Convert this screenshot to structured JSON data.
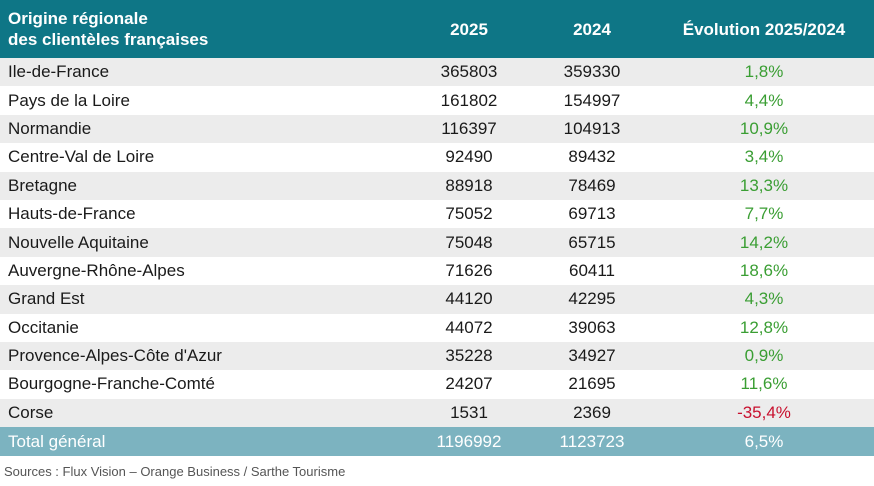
{
  "table": {
    "headers": {
      "region_line1": "Origine régionale",
      "region_line2": "des clientèles françaises",
      "y2025": "2025",
      "y2024": "2024",
      "evolution": "Évolution 2025/2024"
    },
    "rows": [
      {
        "region": "Ile-de-France",
        "v2025": "365803",
        "v2024": "359330",
        "evol": "1,8%",
        "negative": false
      },
      {
        "region": "Pays de la Loire",
        "v2025": "161802",
        "v2024": "154997",
        "evol": "4,4%",
        "negative": false
      },
      {
        "region": "Normandie",
        "v2025": "116397",
        "v2024": "104913",
        "evol": "10,9%",
        "negative": false
      },
      {
        "region": "Centre-Val de Loire",
        "v2025": "92490",
        "v2024": "89432",
        "evol": "3,4%",
        "negative": false
      },
      {
        "region": "Bretagne",
        "v2025": "88918",
        "v2024": "78469",
        "evol": "13,3%",
        "negative": false
      },
      {
        "region": "Hauts-de-France",
        "v2025": "75052",
        "v2024": "69713",
        "evol": "7,7%",
        "negative": false
      },
      {
        "region": "Nouvelle Aquitaine",
        "v2025": "75048",
        "v2024": "65715",
        "evol": "14,2%",
        "negative": false
      },
      {
        "region": "Auvergne-Rhône-Alpes",
        "v2025": "71626",
        "v2024": "60411",
        "evol": "18,6%",
        "negative": false
      },
      {
        "region": "Grand Est",
        "v2025": "44120",
        "v2024": "42295",
        "evol": "4,3%",
        "negative": false
      },
      {
        "region": "Occitanie",
        "v2025": "44072",
        "v2024": "39063",
        "evol": "12,8%",
        "negative": false
      },
      {
        "region": "Provence-Alpes-Côte d'Azur",
        "v2025": "35228",
        "v2024": "34927",
        "evol": "0,9%",
        "negative": false
      },
      {
        "region": "Bourgogne-Franche-Comté",
        "v2025": "24207",
        "v2024": "21695",
        "evol": "11,6%",
        "negative": false
      },
      {
        "region": "Corse",
        "v2025": "1531",
        "v2024": "2369",
        "evol": "-35,4%",
        "negative": true
      }
    ],
    "total": {
      "label": "Total général",
      "v2025": "1196992",
      "v2024": "1123723",
      "evol": "6,5%"
    }
  },
  "source": "Sources : Flux Vision – Orange Business / Sarthe Tourisme",
  "colors": {
    "header_bg": "#0e7686",
    "total_bg": "#7cb3c0",
    "positive": "#3a9e33",
    "negative": "#c8102e"
  }
}
